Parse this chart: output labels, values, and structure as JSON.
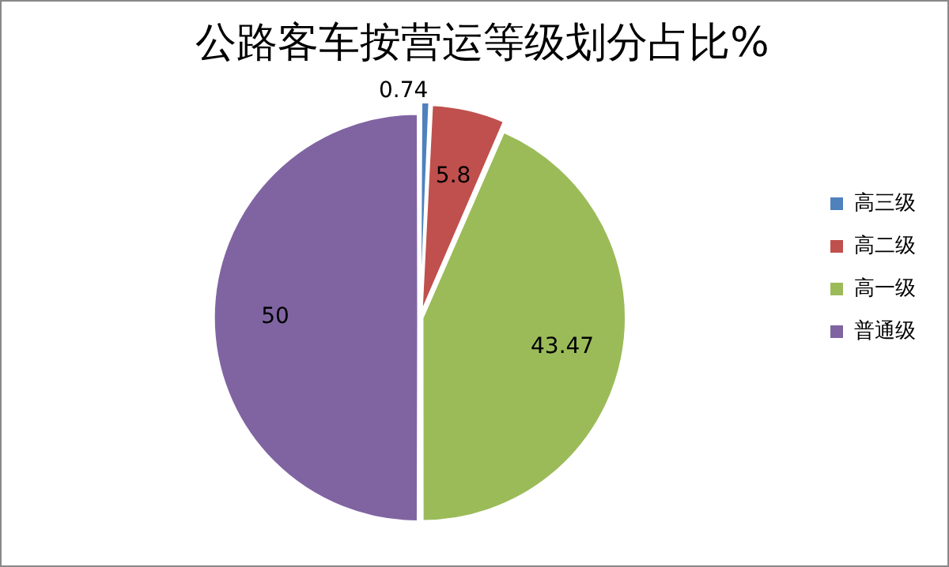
{
  "chart_data": {
    "type": "pie",
    "title": "公路客车按营运等级划分占比%",
    "categories": [
      "高三级",
      "高二级",
      "高一级",
      "普通级"
    ],
    "values": [
      0.74,
      5.8,
      43.47,
      50
    ],
    "colors": [
      "#4f81bd",
      "#c0504d",
      "#9bbb59",
      "#8064a2"
    ],
    "data_labels": true,
    "legend": "right"
  }
}
